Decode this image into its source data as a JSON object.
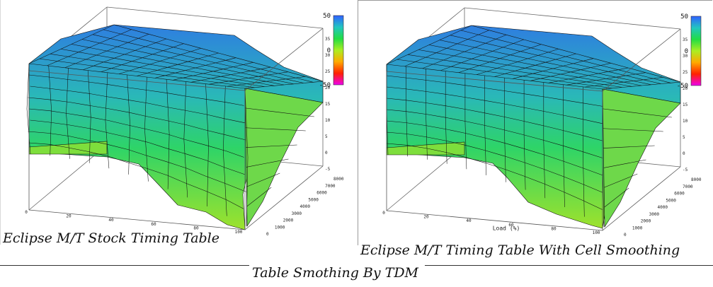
{
  "footer": {
    "caption": "Table Smothing By TDM"
  },
  "chart_data": [
    {
      "type": "surface3d",
      "title": "Eclipse M/T Stock Timing Table",
      "smoothed": false,
      "x_ticks": [
        "0",
        "20",
        "40",
        "60",
        "80",
        "100"
      ],
      "x_label": "",
      "y_ticks": [
        "0",
        "1000",
        "2000",
        "3000",
        "4000",
        "5000",
        "6000",
        "7000",
        "8000"
      ],
      "z_ticks": [
        "-5",
        "0",
        "5",
        "10",
        "15",
        "20",
        "25",
        "30",
        "35"
      ],
      "colorbar": {
        "min": -50,
        "max": 50,
        "labels": [
          "50",
          "0",
          "-50"
        ]
      },
      "colors": [
        "#3060ff",
        "#22c6c0",
        "#22dd44",
        "#aaee22",
        "#ffaa00",
        "#ff2200",
        "#ee00ee"
      ]
    },
    {
      "type": "surface3d",
      "title": "Eclipse M/T Timing Table With Cell Smoothing",
      "smoothed": true,
      "x_ticks": [
        "0",
        "20",
        "40",
        "60",
        "80",
        "100"
      ],
      "x_label": "Load (%)",
      "y_ticks": [
        "0",
        "1000",
        "2000",
        "3000",
        "4000",
        "5000",
        "6000",
        "7000",
        "8000"
      ],
      "z_ticks": [
        "-5",
        "0",
        "5",
        "10",
        "15",
        "20",
        "25",
        "30",
        "35"
      ],
      "colorbar": {
        "min": -50,
        "max": 50,
        "labels": [
          "50",
          "0",
          "-50"
        ]
      },
      "colors": [
        "#3060ff",
        "#22c6c0",
        "#22dd44",
        "#aaee22",
        "#ffaa00",
        "#ff2200",
        "#ee00ee"
      ]
    }
  ]
}
